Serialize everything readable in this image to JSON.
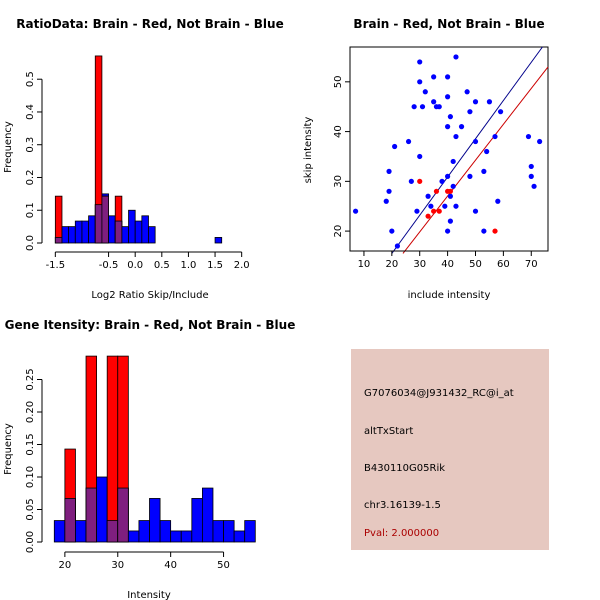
{
  "colors": {
    "brain": "#ff0000",
    "not_brain": "#0000ff",
    "overlap": "#7f1f7f",
    "info_bg": "#e6c8c0",
    "pval": "#aa0000"
  },
  "chart_data": [
    {
      "type": "bar",
      "title": "RatioData: Brain - Red, Not Brain - Blue",
      "xlabel": "Log2 Ratio Skip/Include",
      "ylabel": "Frequency",
      "xlim": [
        -1.6,
        2.1
      ],
      "ylim": [
        0,
        0.58
      ],
      "xticks": [
        -1.5,
        -0.5,
        0.0,
        0.5,
        1.0,
        1.5,
        2.0
      ],
      "xtick_labels": [
        "-1.5",
        "-0.5",
        "0.0",
        "0.5",
        "1.0",
        "1.5",
        "2.0"
      ],
      "yticks": [
        0.0,
        0.1,
        0.2,
        0.3,
        0.4,
        0.5
      ],
      "ytick_labels": [
        "0.0",
        "0.1",
        "0.2",
        "0.3",
        "0.4",
        "0.5"
      ],
      "bin_start": -1.5,
      "bin_width": 0.125,
      "series": [
        {
          "name": "Not Brain",
          "values": [
            0.017,
            0.05,
            0.05,
            0.067,
            0.067,
            0.083,
            0.117,
            0.15,
            0.083,
            0.067,
            0.05,
            0.1,
            0.067,
            0.083,
            0.05,
            0,
            0,
            0,
            0,
            0,
            0,
            0,
            0,
            0,
            0.017
          ]
        },
        {
          "name": "Brain",
          "values": [
            0.143,
            0,
            0,
            0,
            0,
            0,
            0.571,
            0.143,
            0,
            0.143,
            0,
            0,
            0,
            0,
            0,
            0,
            0,
            0,
            0,
            0,
            0,
            0,
            0,
            0,
            0
          ]
        }
      ]
    },
    {
      "type": "scatter",
      "title": "Brain - Red, Not Brain - Blue",
      "xlabel": "include intensity",
      "ylabel": "skip intensity",
      "xlim": [
        5,
        76
      ],
      "ylim": [
        16,
        57
      ],
      "xticks": [
        10,
        20,
        30,
        40,
        50,
        60,
        70
      ],
      "xtick_labels": [
        "10",
        "20",
        "30",
        "40",
        "50",
        "60",
        "70"
      ],
      "yticks": [
        20,
        30,
        40,
        50
      ],
      "ytick_labels": [
        "20",
        "30",
        "40",
        "50"
      ],
      "series": [
        {
          "name": "Not Brain",
          "points": [
            [
              7,
              24
            ],
            [
              18,
              26
            ],
            [
              19,
              28
            ],
            [
              19,
              32
            ],
            [
              20,
              20
            ],
            [
              21,
              37
            ],
            [
              22,
              17
            ],
            [
              26,
              38
            ],
            [
              27,
              30
            ],
            [
              28,
              45
            ],
            [
              29,
              24
            ],
            [
              30,
              35
            ],
            [
              30,
              50
            ],
            [
              31,
              45
            ],
            [
              30,
              54
            ],
            [
              32,
              48
            ],
            [
              33,
              27
            ],
            [
              34,
              25
            ],
            [
              35,
              46
            ],
            [
              35,
              51
            ],
            [
              36,
              45
            ],
            [
              37,
              45
            ],
            [
              38,
              30
            ],
            [
              39,
              25
            ],
            [
              40,
              41
            ],
            [
              40,
              47
            ],
            [
              40,
              51
            ],
            [
              40,
              31
            ],
            [
              40,
              20
            ],
            [
              41,
              27
            ],
            [
              41,
              22
            ],
            [
              41,
              43
            ],
            [
              42,
              29
            ],
            [
              42,
              34
            ],
            [
              43,
              25
            ],
            [
              43,
              39
            ],
            [
              43,
              55
            ],
            [
              45,
              41
            ],
            [
              47,
              48
            ],
            [
              48,
              31
            ],
            [
              48,
              44
            ],
            [
              50,
              46
            ],
            [
              50,
              24
            ],
            [
              50,
              38
            ],
            [
              53,
              20
            ],
            [
              53,
              32
            ],
            [
              54,
              36
            ],
            [
              55,
              46
            ],
            [
              57,
              39
            ],
            [
              58,
              26
            ],
            [
              59,
              44
            ],
            [
              69,
              39
            ],
            [
              70,
              31
            ],
            [
              70,
              33
            ],
            [
              71,
              29
            ],
            [
              73,
              38
            ]
          ]
        },
        {
          "name": "Brain",
          "points": [
            [
              30,
              30
            ],
            [
              33,
              23
            ],
            [
              35,
              24
            ],
            [
              36,
              28
            ],
            [
              37,
              24
            ],
            [
              40,
              28
            ],
            [
              41,
              28
            ],
            [
              57,
              20
            ]
          ]
        }
      ],
      "fit_lines": [
        {
          "name": "Not Brain fit",
          "color": "#00008b",
          "x": [
            20,
            74
          ],
          "y": [
            15.5,
            57
          ]
        },
        {
          "name": "Brain fit",
          "color": "#cc0000",
          "x": [
            24,
            76
          ],
          "y": [
            15.5,
            53
          ]
        }
      ]
    },
    {
      "type": "bar",
      "title": "Gene Itensity: Brain - Red, Not Brain - Blue",
      "xlabel": "Intensity",
      "ylabel": "Frequency",
      "xlim": [
        17,
        55
      ],
      "ylim": [
        0,
        0.3
      ],
      "xticks": [
        20,
        30,
        40,
        50
      ],
      "xtick_labels": [
        "20",
        "30",
        "40",
        "50"
      ],
      "yticks": [
        0,
        0.05,
        0.1,
        0.15,
        0.2,
        0.25
      ],
      "ytick_labels": [
        "0.00",
        "0.05",
        "0.10",
        "0.15",
        "0.20",
        "0.25"
      ],
      "bin_start": 18,
      "bin_width": 2,
      "series": [
        {
          "name": "Not Brain",
          "values": [
            0.033,
            0.067,
            0.033,
            0.083,
            0.1,
            0.033,
            0.083,
            0.017,
            0.033,
            0.067,
            0.033,
            0.017,
            0.017,
            0.067,
            0.083,
            0.033,
            0.033,
            0.017,
            0.033
          ]
        },
        {
          "name": "Brain",
          "values": [
            0,
            0.143,
            0,
            0.286,
            0,
            0.286,
            0.286,
            0,
            0,
            0,
            0,
            0,
            0,
            0,
            0,
            0,
            0,
            0,
            0
          ]
        }
      ]
    }
  ],
  "info": {
    "probe_id": "G7076034@J931432_RC@i_at",
    "event_type": "altTxStart",
    "gene_name": "B430110G05Rik",
    "location": "chr3.16139-1.5",
    "pval": "Pval: 2.000000"
  }
}
